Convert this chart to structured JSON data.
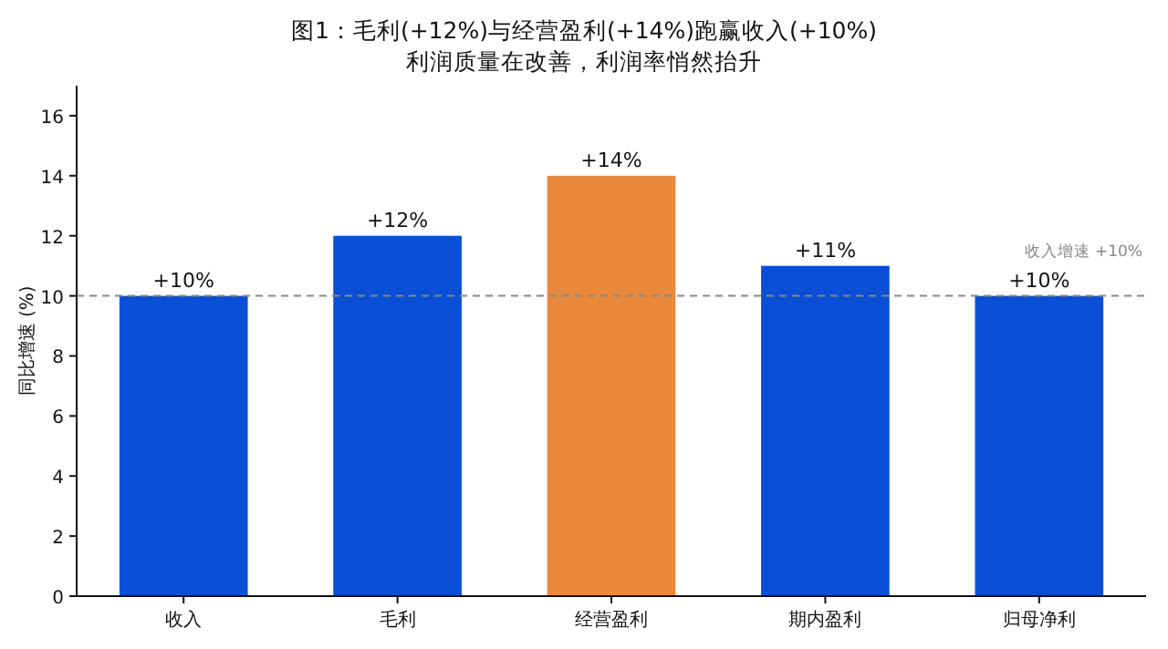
{
  "chart_data": {
    "type": "bar",
    "title": "图1：毛利(+12%)与经营盈利(+14%)跑赢收入(+10%)",
    "subtitle": "利润质量在改善，利润率悄然抬升",
    "ylabel": "同比增速 (%)",
    "categories": [
      "收入",
      "毛利",
      "经营盈利",
      "期内盈利",
      "归母净利"
    ],
    "values": [
      10,
      12,
      14,
      11,
      10
    ],
    "colors": [
      "#0a4fd6",
      "#0a4fd6",
      "#e8893b",
      "#0a4fd6",
      "#0a4fd6"
    ],
    "value_labels": [
      "+10%",
      "+12%",
      "+14%",
      "+11%",
      "+10%"
    ],
    "ylim": [
      0,
      17
    ],
    "yticks": [
      0,
      2,
      4,
      6,
      8,
      10,
      12,
      14,
      16
    ],
    "grid": false,
    "ref_lines": [
      {
        "axis": "y",
        "value": 10,
        "label": "收入增速 +10%",
        "color": "#888888",
        "line_style": "dashed"
      }
    ]
  }
}
